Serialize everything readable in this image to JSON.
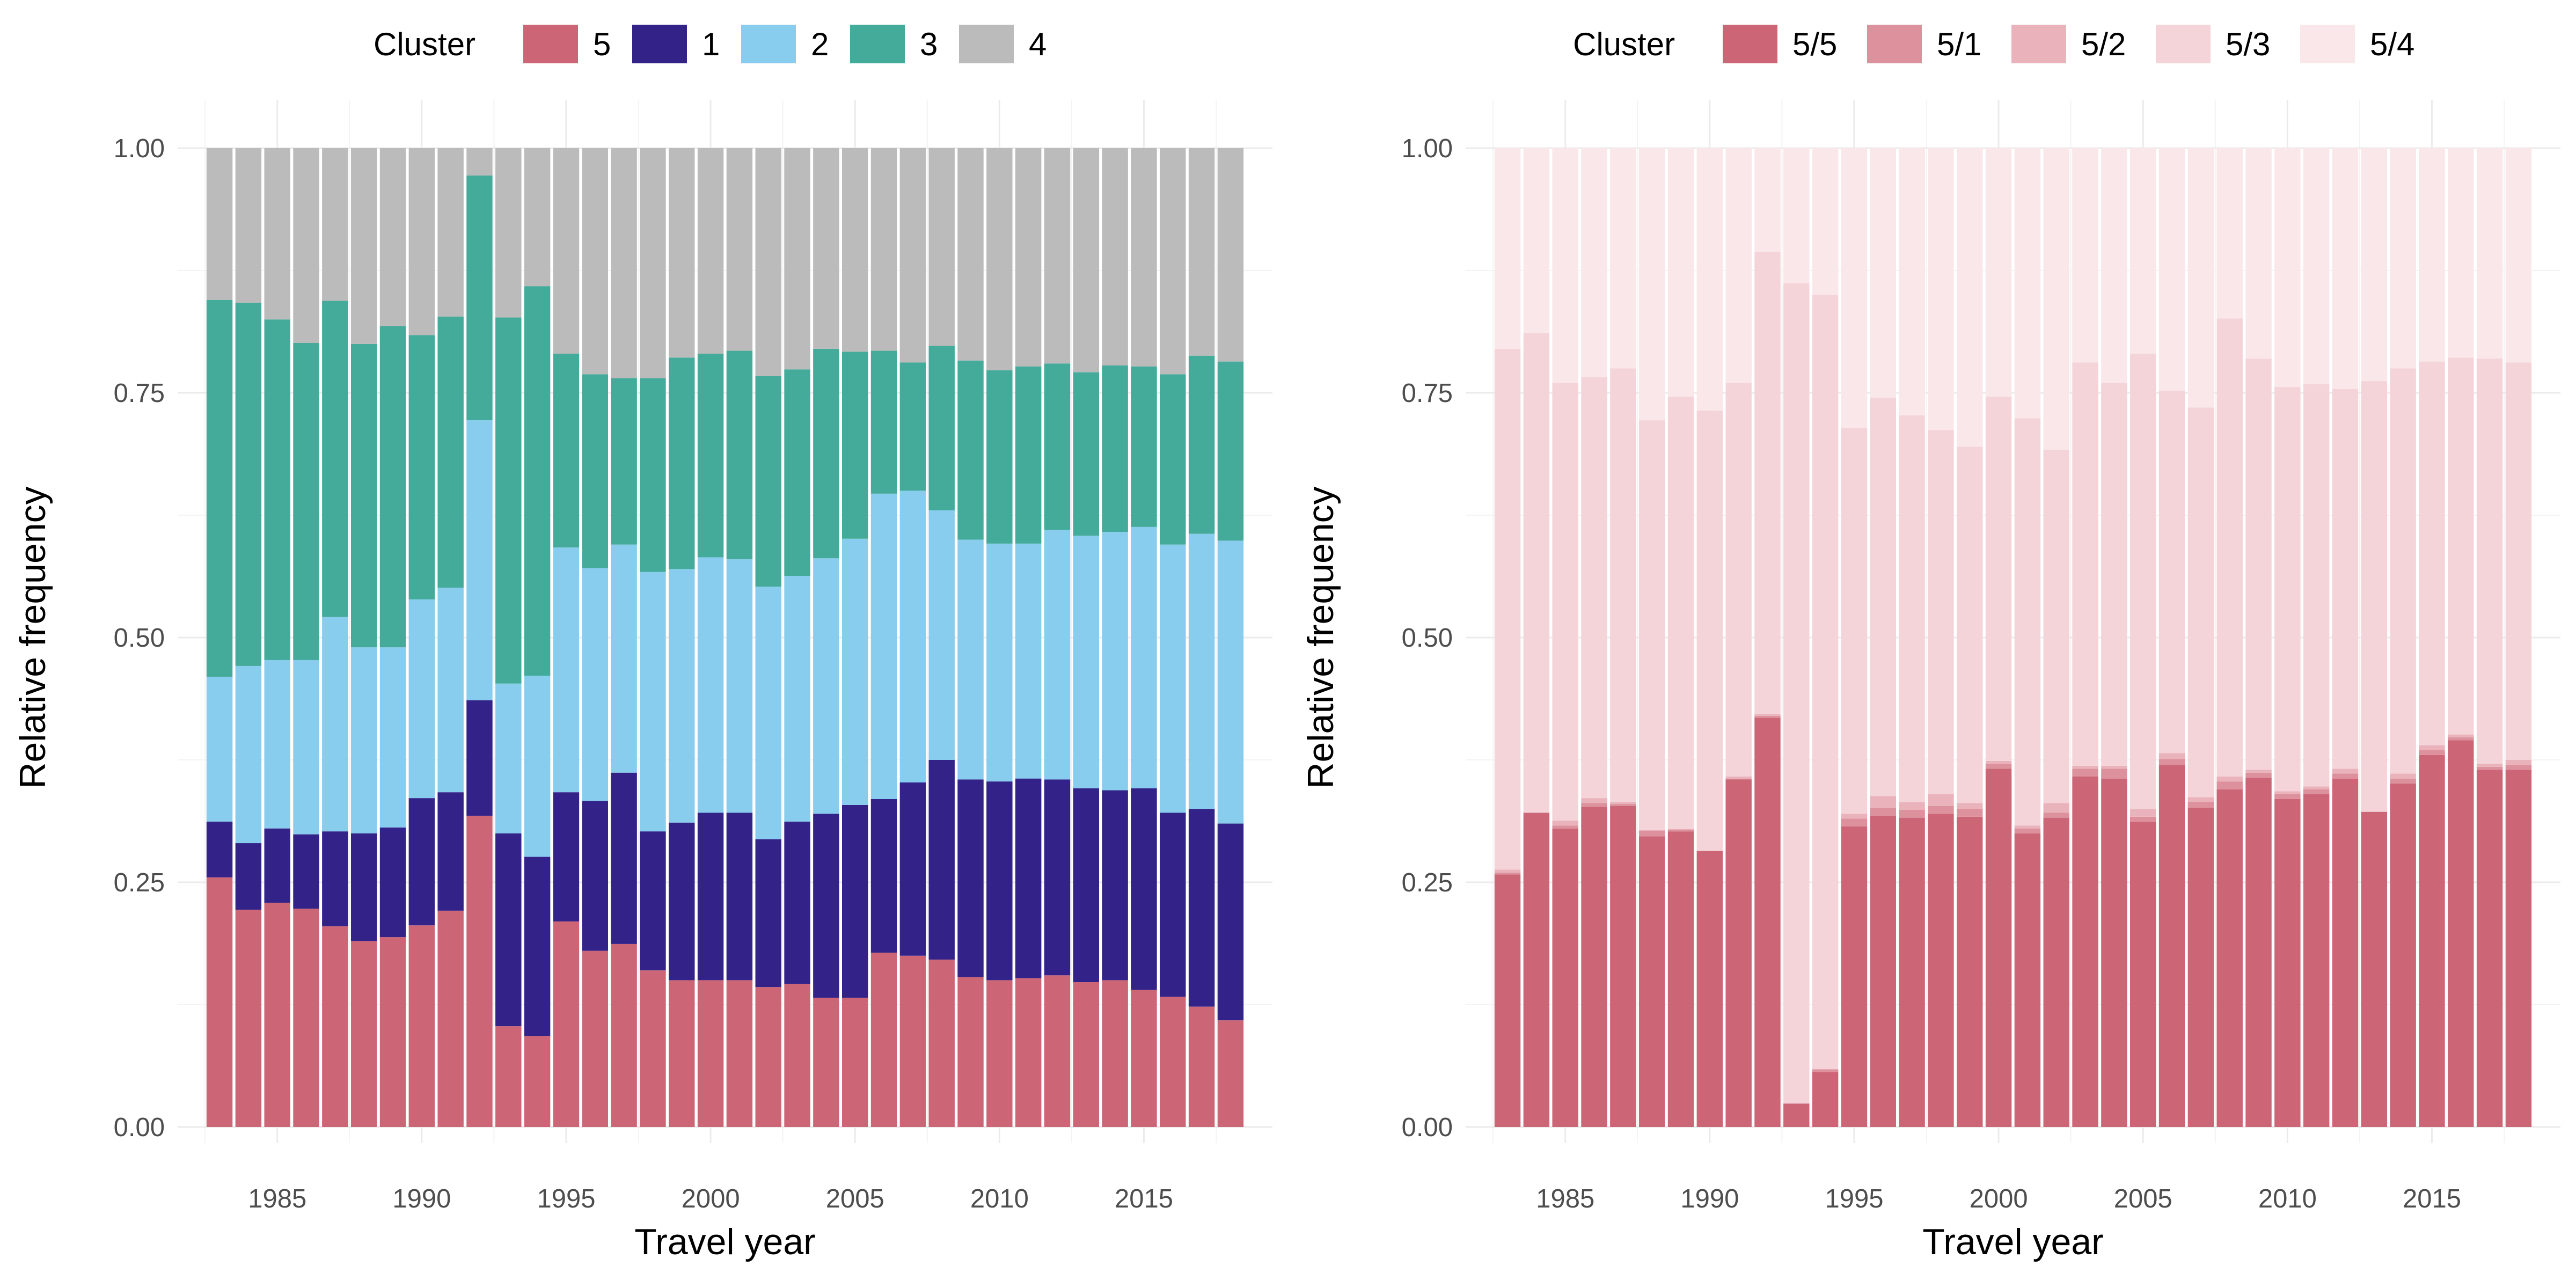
{
  "chart_data": [
    {
      "type": "bar",
      "stacked": true,
      "xlabel": "Travel year",
      "ylabel": "Relative frequency",
      "ylim": [
        0,
        1
      ],
      "yticks": [
        "0.00",
        "0.25",
        "0.50",
        "0.75",
        "1.00"
      ],
      "xticks": [
        1985,
        1990,
        1995,
        2000,
        2005,
        2010,
        2015
      ],
      "grid": true,
      "legend_title": "Cluster",
      "legend_position": "top",
      "categories": [
        1983,
        1984,
        1985,
        1986,
        1987,
        1988,
        1989,
        1990,
        1991,
        1992,
        1993,
        1994,
        1995,
        1996,
        1997,
        1998,
        1999,
        2000,
        2001,
        2002,
        2003,
        2004,
        2005,
        2006,
        2007,
        2008,
        2009,
        2010,
        2011,
        2012,
        2013,
        2014,
        2015,
        2016,
        2017,
        2018
      ],
      "series": [
        {
          "name": "5",
          "color": "#CC6677",
          "values": [
            0.255,
            0.222,
            0.229,
            0.223,
            0.205,
            0.19,
            0.194,
            0.206,
            0.221,
            0.318,
            0.103,
            0.093,
            0.21,
            0.18,
            0.187,
            0.16,
            0.15,
            0.15,
            0.15,
            0.143,
            0.146,
            0.132,
            0.132,
            0.178,
            0.175,
            0.171,
            0.153,
            0.15,
            0.152,
            0.155,
            0.148,
            0.15,
            0.14,
            0.133,
            0.123,
            0.109
          ]
        },
        {
          "name": "1",
          "color": "#332288",
          "values": [
            0.057,
            0.068,
            0.076,
            0.076,
            0.097,
            0.11,
            0.112,
            0.13,
            0.121,
            0.118,
            0.197,
            0.183,
            0.132,
            0.153,
            0.175,
            0.142,
            0.161,
            0.171,
            0.171,
            0.151,
            0.166,
            0.188,
            0.197,
            0.157,
            0.177,
            0.204,
            0.202,
            0.203,
            0.204,
            0.2,
            0.198,
            0.194,
            0.206,
            0.188,
            0.202,
            0.201
          ]
        },
        {
          "name": "2",
          "color": "#88CCEE",
          "values": [
            0.148,
            0.181,
            0.172,
            0.178,
            0.219,
            0.19,
            0.184,
            0.203,
            0.209,
            0.286,
            0.153,
            0.185,
            0.25,
            0.238,
            0.233,
            0.265,
            0.259,
            0.261,
            0.259,
            0.258,
            0.251,
            0.261,
            0.272,
            0.312,
            0.298,
            0.255,
            0.245,
            0.243,
            0.24,
            0.255,
            0.258,
            0.264,
            0.267,
            0.274,
            0.281,
            0.289
          ]
        },
        {
          "name": "3",
          "color": "#44AA99",
          "values": [
            0.385,
            0.371,
            0.348,
            0.324,
            0.323,
            0.31,
            0.328,
            0.27,
            0.277,
            0.25,
            0.374,
            0.398,
            0.198,
            0.198,
            0.17,
            0.198,
            0.216,
            0.208,
            0.213,
            0.215,
            0.211,
            0.214,
            0.191,
            0.146,
            0.131,
            0.168,
            0.183,
            0.177,
            0.181,
            0.17,
            0.167,
            0.17,
            0.164,
            0.174,
            0.182,
            0.183
          ]
        },
        {
          "name": "4",
          "color": "#BBBBBB",
          "values": [
            0.155,
            0.158,
            0.175,
            0.199,
            0.156,
            0.2,
            0.182,
            0.191,
            0.172,
            0.028,
            0.173,
            0.141,
            0.21,
            0.231,
            0.235,
            0.235,
            0.214,
            0.21,
            0.207,
            0.233,
            0.226,
            0.205,
            0.208,
            0.207,
            0.219,
            0.202,
            0.217,
            0.227,
            0.223,
            0.22,
            0.229,
            0.222,
            0.223,
            0.231,
            0.212,
            0.218
          ]
        }
      ]
    },
    {
      "type": "bar",
      "stacked": true,
      "xlabel": "Travel year",
      "ylabel": "Relative frequency",
      "ylim": [
        0,
        1
      ],
      "yticks": [
        "0.00",
        "0.25",
        "0.50",
        "0.75",
        "1.00"
      ],
      "xticks": [
        1985,
        1990,
        1995,
        2000,
        2005,
        2010,
        2015
      ],
      "grid": true,
      "legend_title": "Cluster",
      "legend_position": "top",
      "categories": [
        1983,
        1984,
        1985,
        1986,
        1987,
        1988,
        1989,
        1990,
        1991,
        1992,
        1993,
        1994,
        1995,
        1996,
        1997,
        1998,
        1999,
        2000,
        2001,
        2002,
        2003,
        2004,
        2005,
        2006,
        2007,
        2008,
        2009,
        2010,
        2011,
        2012,
        2013,
        2014,
        2015,
        2016,
        2017,
        2018
      ],
      "series": [
        {
          "name": "5/5",
          "color": "#CC6677",
          "values": [
            0.258,
            0.321,
            0.305,
            0.327,
            0.328,
            0.297,
            0.302,
            0.282,
            0.355,
            0.418,
            0.024,
            0.056,
            0.307,
            0.318,
            0.316,
            0.32,
            0.317,
            0.366,
            0.3,
            0.316,
            0.358,
            0.356,
            0.312,
            0.37,
            0.326,
            0.345,
            0.357,
            0.335,
            0.34,
            0.356,
            0.322,
            0.351,
            0.38,
            0.395,
            0.365,
            0.365
          ]
        },
        {
          "name": "5/1",
          "color": "#DD919D",
          "values": [
            0.002,
            0.0,
            0.003,
            0.004,
            0.002,
            0.006,
            0.002,
            0.0,
            0.001,
            0.002,
            0.0,
            0.003,
            0.008,
            0.008,
            0.008,
            0.008,
            0.008,
            0.005,
            0.005,
            0.005,
            0.008,
            0.01,
            0.005,
            0.006,
            0.006,
            0.008,
            0.005,
            0.005,
            0.005,
            0.005,
            0.0,
            0.005,
            0.005,
            0.003,
            0.003,
            0.005
          ]
        },
        {
          "name": "5/2",
          "color": "#EAB3BB",
          "values": [
            0.003,
            0.0,
            0.005,
            0.005,
            0.002,
            0.0,
            0.0,
            0.0,
            0.002,
            0.002,
            0.0,
            0.0,
            0.005,
            0.012,
            0.008,
            0.012,
            0.006,
            0.003,
            0.003,
            0.01,
            0.003,
            0.003,
            0.008,
            0.006,
            0.005,
            0.005,
            0.003,
            0.003,
            0.003,
            0.005,
            0.0,
            0.005,
            0.005,
            0.003,
            0.003,
            0.005
          ]
        },
        {
          "name": "5/3",
          "color": "#F4D4D9",
          "values": [
            0.532,
            0.49,
            0.447,
            0.43,
            0.443,
            0.419,
            0.442,
            0.45,
            0.402,
            0.472,
            0.838,
            0.791,
            0.394,
            0.407,
            0.395,
            0.372,
            0.364,
            0.372,
            0.416,
            0.361,
            0.412,
            0.391,
            0.465,
            0.37,
            0.398,
            0.468,
            0.42,
            0.413,
            0.411,
            0.388,
            0.44,
            0.414,
            0.392,
            0.385,
            0.414,
            0.406
          ]
        },
        {
          "name": "5/4",
          "color": "#F9E7E9",
          "values": [
            0.205,
            0.189,
            0.24,
            0.234,
            0.225,
            0.278,
            0.254,
            0.268,
            0.24,
            0.106,
            0.138,
            0.15,
            0.286,
            0.255,
            0.273,
            0.288,
            0.305,
            0.254,
            0.276,
            0.308,
            0.219,
            0.24,
            0.21,
            0.248,
            0.265,
            0.174,
            0.215,
            0.244,
            0.241,
            0.246,
            0.238,
            0.225,
            0.218,
            0.214,
            0.215,
            0.219
          ]
        }
      ]
    }
  ]
}
